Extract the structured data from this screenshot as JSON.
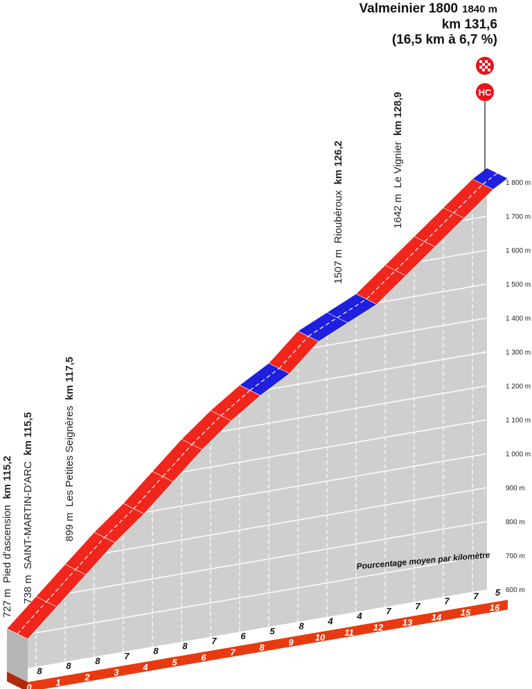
{
  "summit": {
    "name": "Valmeinier 1800",
    "elevation": "1840 m",
    "km": "km 131,6",
    "summary": "(16,5 km à 6,7 %)",
    "category": "HC",
    "finish_icon": "checkered-flag-icon"
  },
  "chart_data": {
    "type": "area",
    "subtitle": "Pourcentage moyen par kilomètre",
    "x_unit": "km",
    "x_ticks": [
      "0",
      "1",
      "2",
      "3",
      "4",
      "5",
      "6",
      "7",
      "8",
      "9",
      "10",
      "11",
      "12",
      "13",
      "14",
      "15",
      "16"
    ],
    "y_ticks": [
      "600 m",
      "700 m",
      "800 m",
      "900 m",
      "1 000 m",
      "1 100 m",
      "1 200 m",
      "1 300 m",
      "1 400 m",
      "1 500 m",
      "1 600 m",
      "1 700 m",
      "1 800 m"
    ],
    "ylim": [
      600,
      1840
    ],
    "xlim": [
      0,
      16.5
    ],
    "start_elevation": 727,
    "segments": [
      {
        "from": 0,
        "to": 1,
        "gradient": 8
      },
      {
        "from": 1,
        "to": 2,
        "gradient": 8
      },
      {
        "from": 2,
        "to": 3,
        "gradient": 8
      },
      {
        "from": 3,
        "to": 4,
        "gradient": 7
      },
      {
        "from": 4,
        "to": 5,
        "gradient": 8
      },
      {
        "from": 5,
        "to": 6,
        "gradient": 8
      },
      {
        "from": 6,
        "to": 7,
        "gradient": 7
      },
      {
        "from": 7,
        "to": 8,
        "gradient": 6
      },
      {
        "from": 8,
        "to": 9,
        "gradient": 5
      },
      {
        "from": 9,
        "to": 10,
        "gradient": 8
      },
      {
        "from": 10,
        "to": 11,
        "gradient": 4
      },
      {
        "from": 11,
        "to": 12,
        "gradient": 4
      },
      {
        "from": 12,
        "to": 13,
        "gradient": 7
      },
      {
        "from": 13,
        "to": 14,
        "gradient": 7
      },
      {
        "from": 14,
        "to": 15,
        "gradient": 7
      },
      {
        "from": 15,
        "to": 16,
        "gradient": 7
      },
      {
        "from": 16,
        "to": 16.5,
        "gradient": 5
      }
    ],
    "colors": {
      "steep": "#f0261d",
      "moderate": "#1f1fe0",
      "ground": "#cfcfcf",
      "axis_band": "#e83a10"
    },
    "waypoints": [
      {
        "elev": "727 m",
        "name": "Pied d'ascension",
        "km": "km 115,2"
      },
      {
        "elev": "738 m",
        "name": "SAINT-MARTIN-D'ARC",
        "km": "km 115,5"
      },
      {
        "elev": "899 m",
        "name": "Les Petites Seignères",
        "km": "km 117,5"
      },
      {
        "elev": "1507 m",
        "name": "Rioubéroux",
        "km": "km 126,2"
      },
      {
        "elev": "1642 m",
        "name": "Le Vignier",
        "km": "km 128,9"
      }
    ]
  }
}
